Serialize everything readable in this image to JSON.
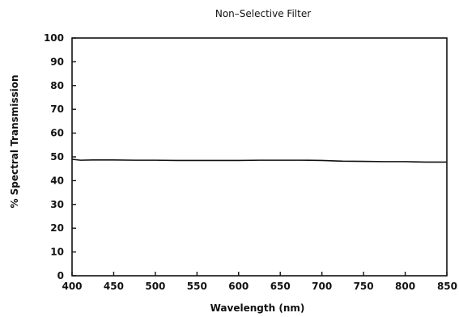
{
  "chart_data": {
    "type": "line",
    "title": "Non–Selective Filter",
    "xlabel": "Wavelength (nm)",
    "ylabel": "% Spectral Transmission",
    "xlim": [
      400,
      850
    ],
    "ylim": [
      0,
      100
    ],
    "x_ticks": [
      "400",
      "450",
      "500",
      "550",
      "600",
      "650",
      "700",
      "750",
      "800",
      "850"
    ],
    "y_ticks": [
      "0",
      "10",
      "20",
      "30",
      "40",
      "50",
      "60",
      "70",
      "80",
      "90",
      "100"
    ],
    "grid": false,
    "legend": "none",
    "line_color": "#111111",
    "series": [
      {
        "x": [
          400,
          410,
          425,
          450,
          475,
          500,
          525,
          550,
          575,
          600,
          625,
          650,
          675,
          700,
          725,
          750,
          775,
          800,
          825,
          850
        ],
        "y": [
          49.0,
          48.6,
          48.7,
          48.7,
          48.6,
          48.6,
          48.5,
          48.5,
          48.5,
          48.5,
          48.6,
          48.6,
          48.6,
          48.5,
          48.2,
          48.1,
          48.0,
          48.0,
          47.8,
          47.8
        ]
      }
    ]
  }
}
